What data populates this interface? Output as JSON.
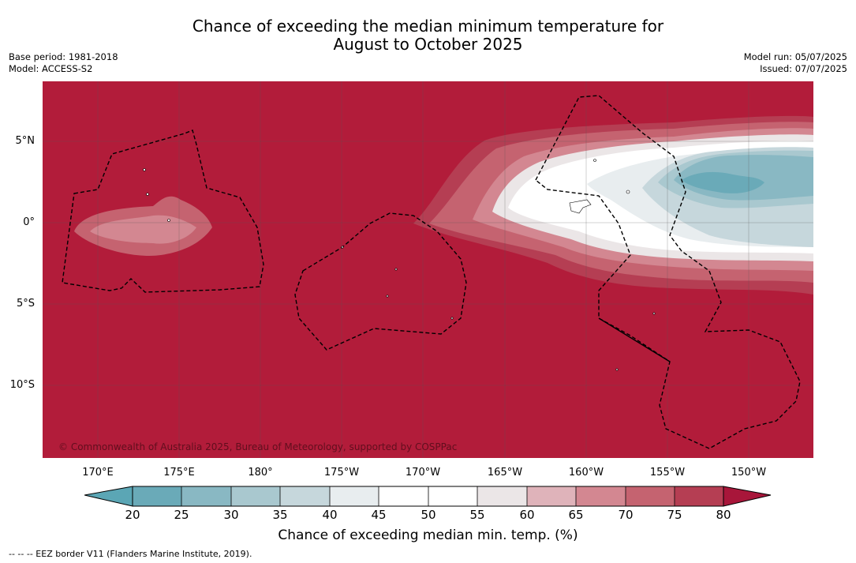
{
  "title": {
    "line1": "Chance of exceeding the median minimum temperature for",
    "line2": "August to October 2025"
  },
  "meta_left": {
    "base_period": "Base period: 1981-2018",
    "model": "Model: ACCESS-S2"
  },
  "meta_right": {
    "model_run": "Model run: 05/07/2025",
    "issued": "Issued: 07/07/2025"
  },
  "map": {
    "lat_labels": [
      "5°N",
      "0°",
      "5°S",
      "10°S"
    ],
    "lon_labels": [
      "170°E",
      "175°E",
      "180°",
      "175°W",
      "170°W",
      "165°W",
      "160°W",
      "155°W",
      "150°W"
    ],
    "credit": "© Commonwealth of Australia 2025, Bureau of Meteorology, supported by COSPPac",
    "ocean_color": "#b21c3a"
  },
  "colorbar": {
    "ticks": [
      "20",
      "25",
      "30",
      "35",
      "40",
      "45",
      "50",
      "55",
      "60",
      "65",
      "70",
      "75",
      "80"
    ],
    "colors": [
      "#6aaab8",
      "#89b8c3",
      "#a9c8cf",
      "#c6d7dc",
      "#e8edef",
      "#ffffff",
      "#ffffff",
      "#ebe6e7",
      "#dfb3ba",
      "#d38791",
      "#c56370",
      "#b53e53"
    ],
    "low_extend_color": "#5ba6b5",
    "high_extend_color": "#a8163a",
    "label": "Chance of exceeding median min. temp. (%)"
  },
  "footnote": "--  --  -- EEZ border V11 (Flanders Marine Institute, 2019)."
}
